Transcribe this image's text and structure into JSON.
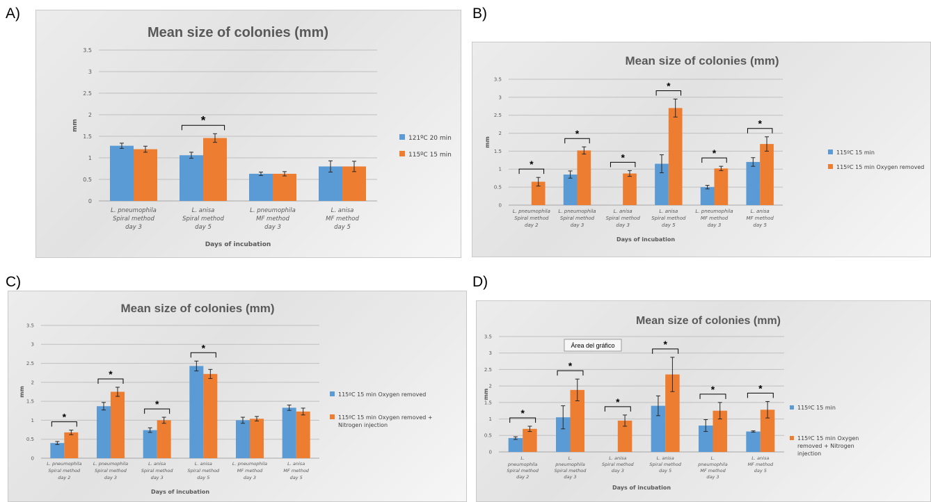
{
  "colors": {
    "blue": "#5b9bd5",
    "orange": "#ed7d31",
    "grid": "#bfbfbf",
    "text": "#595959"
  },
  "panel_labels": [
    "A)",
    "B)",
    "C)",
    "D)"
  ],
  "chart_data": [
    {
      "type": "bar",
      "title": "Mean size of colonies (mm)",
      "ylabel": "mm",
      "xlabel": "Days of incubation",
      "ylim": [
        0,
        3.5
      ],
      "yticks": [
        "0",
        "0.5",
        "1",
        "1.5",
        "2",
        "2.5",
        "3",
        "3.5"
      ],
      "grid": true,
      "legend_position": "right",
      "categories": [
        [
          "L. pneumophila",
          "Spiral method",
          "day 3"
        ],
        [
          "L. anisa",
          "Spiral method",
          "day 5"
        ],
        [
          "L. pneumophila",
          "MF method",
          "day 3"
        ],
        [
          "L. anisa",
          "MF method",
          "day 5"
        ]
      ],
      "series": [
        {
          "name": "121ºC 20 min",
          "color": "#5b9bd5",
          "values": [
            1.28,
            1.06,
            0.63,
            0.8
          ],
          "errors": [
            0.06,
            0.07,
            0.04,
            0.13
          ]
        },
        {
          "name": "115ºC 15 min",
          "color": "#ed7d31",
          "values": [
            1.2,
            1.46,
            0.63,
            0.8
          ],
          "errors": [
            0.07,
            0.1,
            0.05,
            0.12
          ]
        }
      ],
      "significance": [
        {
          "category": 1,
          "label": "*"
        }
      ]
    },
    {
      "type": "bar",
      "title": "Mean size of colonies (mm)",
      "ylabel": "mm",
      "xlabel": "Days of incubation",
      "ylim": [
        0,
        3.5
      ],
      "yticks": [
        "0",
        "0.5",
        "1",
        "1.5",
        "2",
        "2.5",
        "3",
        "3.5"
      ],
      "grid": true,
      "legend_position": "right",
      "categories": [
        [
          "L. pneumophila",
          "Spiral method",
          "day 2"
        ],
        [
          "L. pneumophila",
          "Spiral method",
          "day 3"
        ],
        [
          "L. anisa",
          "Spiral method",
          "day 3"
        ],
        [
          "L. anisa",
          "Spiral method",
          "day 5"
        ],
        [
          "L. pneumophila",
          "MF method",
          "day 3"
        ],
        [
          "L. anisa",
          "MF method",
          "day 5"
        ]
      ],
      "series": [
        {
          "name": "115ºC 15 min",
          "color": "#5b9bd5",
          "values": [
            0,
            0.85,
            0,
            1.15,
            0.5,
            1.2
          ],
          "errors": [
            0,
            0.1,
            0,
            0.25,
            0.05,
            0.12
          ]
        },
        {
          "name": "115ºC 15 min Oxygen removed",
          "color": "#ed7d31",
          "values": [
            0.65,
            1.52,
            0.88,
            2.7,
            1.02,
            1.7
          ],
          "errors": [
            0.12,
            0.1,
            0.08,
            0.25,
            0.06,
            0.2
          ]
        }
      ],
      "significance": [
        {
          "category": 0,
          "label": "*"
        },
        {
          "category": 1,
          "label": "*"
        },
        {
          "category": 2,
          "label": "*"
        },
        {
          "category": 3,
          "label": "*"
        },
        {
          "category": 4,
          "label": "*"
        },
        {
          "category": 5,
          "label": "*"
        }
      ]
    },
    {
      "type": "bar",
      "title": "Mean size of colonies (mm)",
      "ylabel": "mm",
      "xlabel": "Days of incubation",
      "ylim": [
        0,
        3.5
      ],
      "yticks": [
        "0",
        "0.5",
        "1",
        "1.5",
        "2",
        "2.5",
        "3",
        "3.5"
      ],
      "grid": true,
      "legend_position": "right",
      "categories": [
        [
          "L. pneumophila",
          "Spiral method",
          "day 2"
        ],
        [
          "L. pneumophila",
          "Spiral method",
          "day 3"
        ],
        [
          "L. anisa",
          "Spiral method",
          "day 3"
        ],
        [
          "L. anisa",
          "Spiral method",
          "day 5"
        ],
        [
          "L. pneumophila",
          "MF method",
          "day 3"
        ],
        [
          "L. anisa",
          "MF method",
          "day 5"
        ]
      ],
      "series": [
        {
          "name": "115ºC 15 min Oxygen removed",
          "color": "#5b9bd5",
          "values": [
            0.4,
            1.37,
            0.74,
            2.43,
            1.0,
            1.33
          ],
          "errors": [
            0.04,
            0.1,
            0.06,
            0.13,
            0.08,
            0.07
          ]
        },
        {
          "name": "115ºC 15 min Oxygen removed + Nitrogen injection",
          "color": "#ed7d31",
          "values": [
            0.68,
            1.75,
            1.0,
            2.22,
            1.04,
            1.23
          ],
          "errors": [
            0.06,
            0.12,
            0.08,
            0.12,
            0.06,
            0.09
          ]
        }
      ],
      "significance": [
        {
          "category": 0,
          "label": "*"
        },
        {
          "category": 1,
          "label": "*"
        },
        {
          "category": 2,
          "label": "*"
        },
        {
          "category": 3,
          "label": "*"
        }
      ]
    },
    {
      "type": "bar",
      "title": "Mean size of colonies (mm)",
      "ylabel": "mm",
      "xlabel": "Days of incubation",
      "ylim": [
        0,
        3.5
      ],
      "yticks": [
        "0",
        "0.5",
        "1",
        "1.5",
        "2",
        "2.5",
        "3",
        "3.5"
      ],
      "grid": true,
      "legend_position": "right",
      "categories": [
        [
          "L.",
          "pneumophila",
          "Spiral method",
          "day 2"
        ],
        [
          "L.",
          "pneumophila",
          "Spiral method",
          "day 3"
        ],
        [
          "L. anisa",
          "Spiral method",
          "day 3"
        ],
        [
          "L. anisa",
          "Spiral method",
          "day 5"
        ],
        [
          "L.",
          "pneumophila",
          "MF method",
          "day 3"
        ],
        [
          "L. anisa",
          "MF method",
          "day 5"
        ]
      ],
      "series": [
        {
          "name": "115ºC 15 min",
          "color": "#5b9bd5",
          "values": [
            0.42,
            1.05,
            0,
            1.4,
            0.8,
            0.62
          ],
          "errors": [
            0.04,
            0.35,
            0,
            0.3,
            0.18,
            0.02
          ]
        },
        {
          "name": "115ºC 15 min Oxygen removed + Nitrogen injection",
          "color": "#ed7d31",
          "values": [
            0.7,
            1.88,
            0.95,
            2.35,
            1.25,
            1.28
          ],
          "errors": [
            0.08,
            0.33,
            0.17,
            0.52,
            0.25,
            0.25
          ]
        }
      ],
      "significance": [
        {
          "category": 0,
          "label": "*"
        },
        {
          "category": 1,
          "label": "*"
        },
        {
          "category": 2,
          "label": "*"
        },
        {
          "category": 3,
          "label": "*"
        },
        {
          "category": 4,
          "label": "*"
        },
        {
          "category": 5,
          "label": "*"
        }
      ],
      "popup": "Área del gráfico"
    }
  ]
}
